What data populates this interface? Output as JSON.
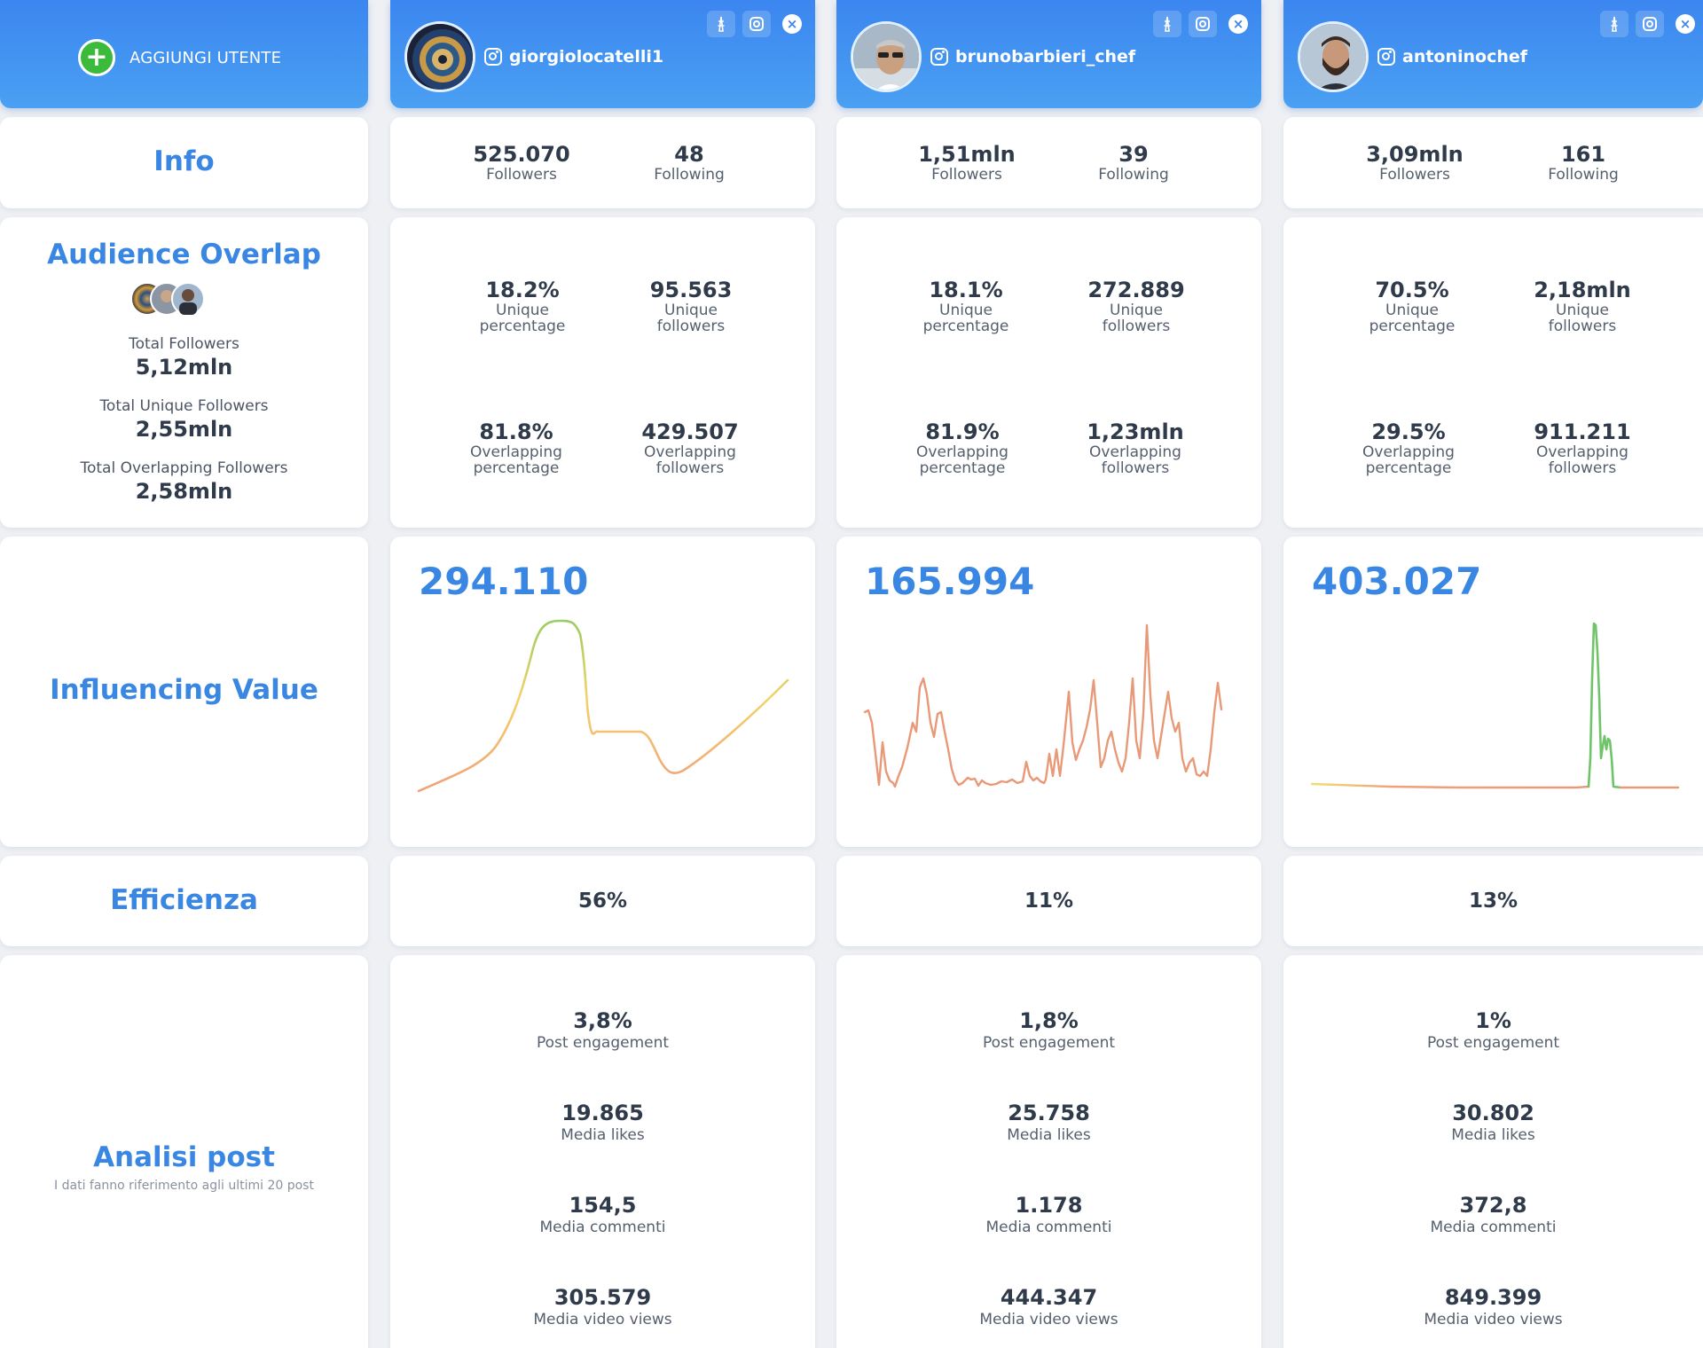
{
  "sidebar": {
    "add_user_label": "AGGIUNGI UTENTE",
    "info_title": "Info",
    "overlap_title": "Audience Overlap",
    "total_followers_label": "Total Followers",
    "total_followers_value": "5,12mln",
    "total_unique_label": "Total Unique Followers",
    "total_unique_value": "2,55mln",
    "total_overlap_label": "Total Overlapping Followers",
    "total_overlap_value": "2,58mln",
    "influencing_title": "Influencing Value",
    "efficiency_title": "Efficienza",
    "posts_title": "Analisi post",
    "posts_note": "I dati fanno riferimento agli ultimi 20 post"
  },
  "labels": {
    "followers": "Followers",
    "following": "Following",
    "unique_percentage_1": "Unique",
    "unique_percentage_2": "percentage",
    "unique_followers_1": "Unique",
    "unique_followers_2": "followers",
    "overlap_percentage_1": "Overlapping",
    "overlap_percentage_2": "percentage",
    "overlap_followers_1": "Overlapping",
    "overlap_followers_2": "followers",
    "post_engagement": "Post engagement",
    "media_likes": "Media likes",
    "media_comments": "Media commenti",
    "media_video_views": "Media video views"
  },
  "colors": {
    "accent": "#3a87e3",
    "header_blue": "#3b86f0",
    "add_green": "#3cba3c"
  },
  "profiles": [
    {
      "username": "giorgiolocatelli1",
      "followers": "525.070",
      "following": "48",
      "unique_percentage": "18.2%",
      "unique_followers": "95.563",
      "overlap_percentage": "81.8%",
      "overlap_followers": "429.507",
      "influencing_value": "294.110",
      "efficiency": "56%",
      "post_engagement": "3,8%",
      "media_likes": "19.865",
      "media_comments": "154,5",
      "media_video_views": "305.579"
    },
    {
      "username": "brunobarbieri_chef",
      "followers": "1,51mln",
      "following": "39",
      "unique_percentage": "18.1%",
      "unique_followers": "272.889",
      "overlap_percentage": "81.9%",
      "overlap_followers": "1,23mln",
      "influencing_value": "165.994",
      "efficiency": "11%",
      "post_engagement": "1,8%",
      "media_likes": "25.758",
      "media_comments": "1.178",
      "media_video_views": "444.347"
    },
    {
      "username": "antoninochef",
      "followers": "3,09mln",
      "following": "161",
      "unique_percentage": "70.5%",
      "unique_followers": "2,18mln",
      "overlap_percentage": "29.5%",
      "overlap_followers": "911.211",
      "influencing_value": "403.027",
      "efficiency": "13%",
      "post_engagement": "1%",
      "media_likes": "30.802",
      "media_comments": "372,8",
      "media_video_views": "849.399"
    }
  ]
}
